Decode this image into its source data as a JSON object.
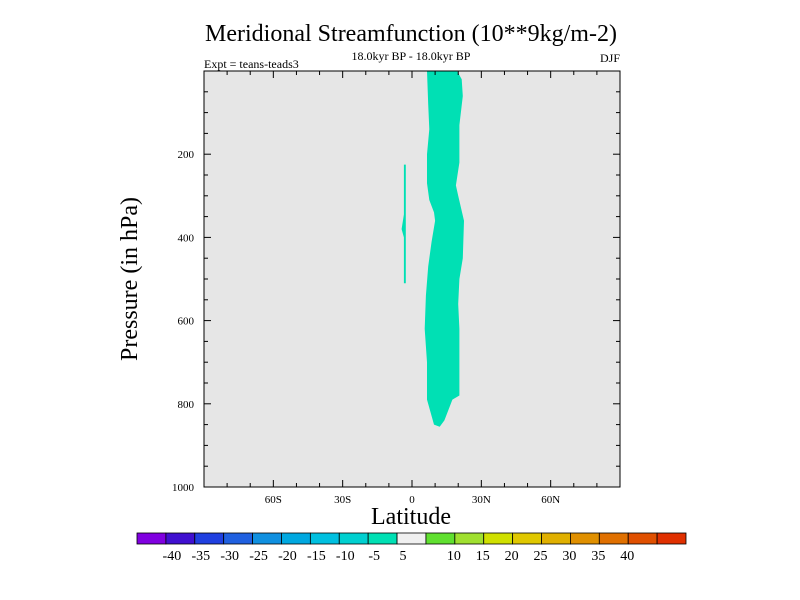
{
  "chart_data": {
    "type": "contour",
    "title": "Meridional Streamfunction (10**9kg/m-2)",
    "subtitle": "18.0kyr BP - 18.0kyr BP",
    "experiment": "Expt = teans-teads3",
    "season": "DJF",
    "xlabel": "Latitude",
    "ylabel": "Pressure (in hPa)",
    "xlim": [
      -90,
      90
    ],
    "ylim": [
      1000,
      0
    ],
    "x_ticks": [
      {
        "value": -60,
        "label": "60S"
      },
      {
        "value": -30,
        "label": "30S"
      },
      {
        "value": 0,
        "label": "0"
      },
      {
        "value": 30,
        "label": "30N"
      },
      {
        "value": 60,
        "label": "60N"
      }
    ],
    "y_ticks": [
      {
        "value": 200,
        "label": "200"
      },
      {
        "value": 400,
        "label": "400"
      },
      {
        "value": 600,
        "label": "600"
      },
      {
        "value": 800,
        "label": "800"
      },
      {
        "value": 1000,
        "label": "1000"
      }
    ],
    "background_color": "#e6e6e6",
    "filled_regions": [
      {
        "name": "main-band",
        "level_range": "-10 to -5",
        "color": "#00e0b4",
        "polygon": [
          [
            6.5,
            0
          ],
          [
            19.5,
            0
          ],
          [
            21.5,
            20
          ],
          [
            22,
            60
          ],
          [
            20.5,
            130
          ],
          [
            20.5,
            220
          ],
          [
            19,
            275
          ],
          [
            20,
            300
          ],
          [
            22.5,
            360
          ],
          [
            22,
            450
          ],
          [
            20.5,
            500
          ],
          [
            20,
            560
          ],
          [
            20.5,
            620
          ],
          [
            20.5,
            700
          ],
          [
            20.5,
            780
          ],
          [
            17.5,
            790
          ],
          [
            14,
            840
          ],
          [
            12,
            855
          ],
          [
            9.5,
            850
          ],
          [
            8,
            820
          ],
          [
            6.5,
            790
          ],
          [
            6.5,
            700
          ],
          [
            5.5,
            620
          ],
          [
            6,
            540
          ],
          [
            7,
            470
          ],
          [
            8.5,
            410
          ],
          [
            10,
            360
          ],
          [
            9.5,
            340
          ],
          [
            7.5,
            310
          ],
          [
            6.5,
            270
          ],
          [
            6.5,
            200
          ],
          [
            7.5,
            140
          ],
          [
            7,
            80
          ],
          [
            6.5,
            0
          ]
        ]
      },
      {
        "name": "small-sliver",
        "level_range": "-10 to -5",
        "color": "#00e0b4",
        "polygon": [
          [
            -3.5,
            225
          ],
          [
            -2.7,
            225
          ],
          [
            -2.7,
            510
          ],
          [
            -3.5,
            510
          ],
          [
            -3.5,
            400
          ],
          [
            -4.5,
            380
          ],
          [
            -3.5,
            345
          ],
          [
            -3.5,
            225
          ]
        ]
      }
    ],
    "colorbar": {
      "colors": [
        "#8000e0",
        "#4010d0",
        "#2040e0",
        "#2060e0",
        "#1090e0",
        "#00a8e0",
        "#00c0e0",
        "#00d0d0",
        "#00e0b4",
        "#f0f0f0",
        "#60e030",
        "#a0e030",
        "#d0e000",
        "#e0c800",
        "#e0b000",
        "#e09000",
        "#e07000",
        "#e05000",
        "#e03000"
      ],
      "labels": [
        "-40",
        "-35",
        "-30",
        "-25",
        "-20",
        "-15",
        "-10",
        "-5",
        "5",
        "10",
        "15",
        "20",
        "25",
        "30",
        "35",
        "40"
      ]
    }
  }
}
